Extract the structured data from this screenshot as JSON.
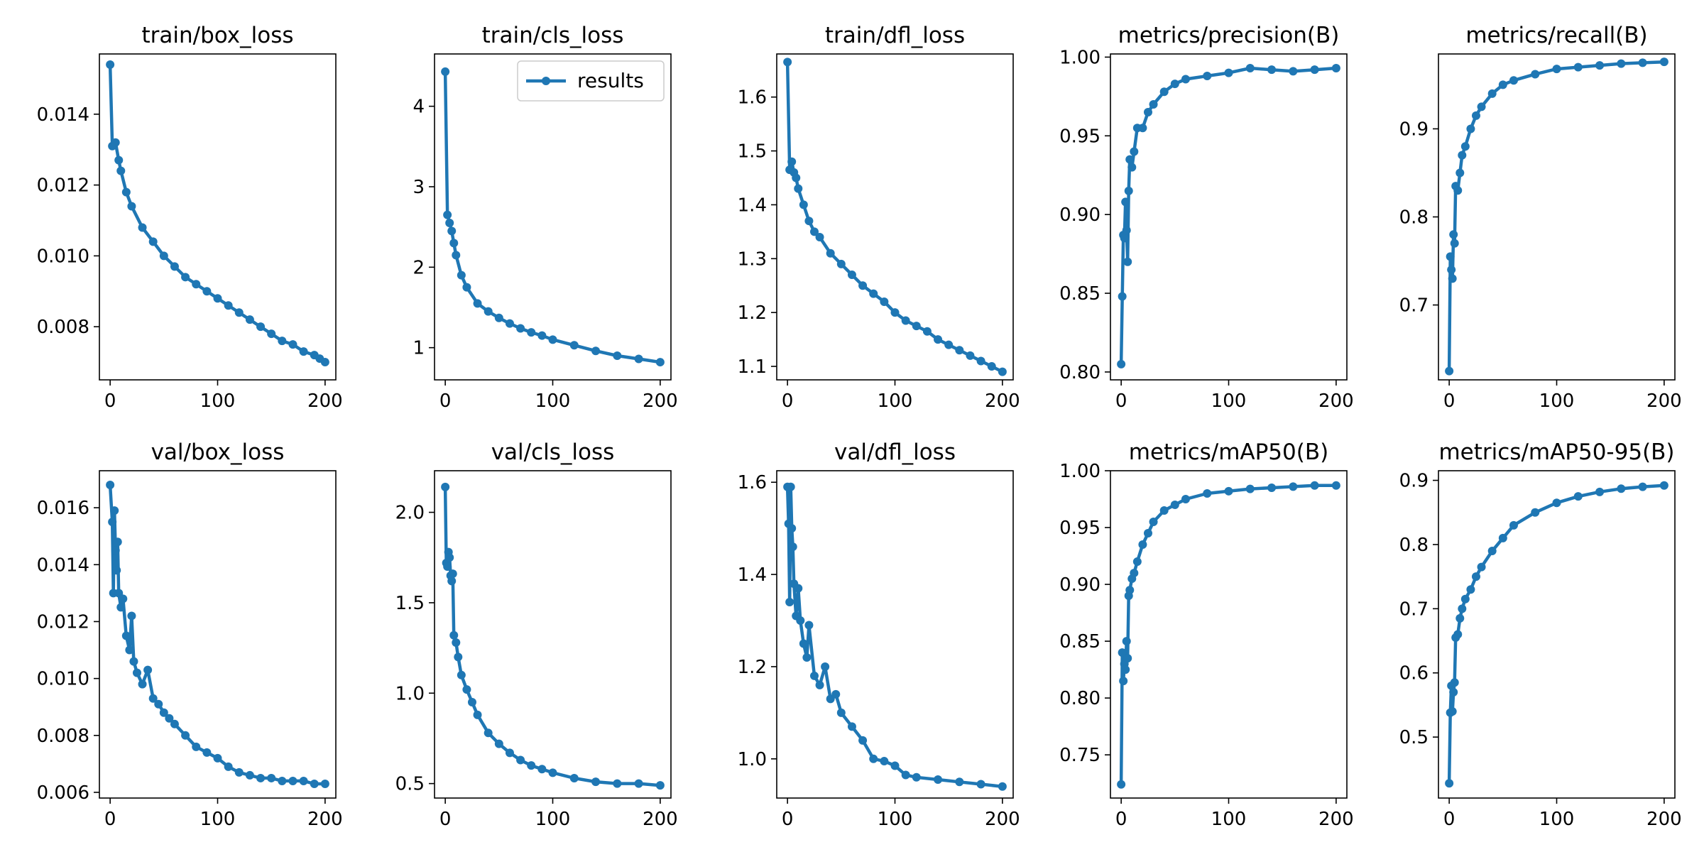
{
  "figure": {
    "legend_label": "results",
    "series_color": "#1f77b4"
  },
  "chart_data": [
    {
      "type": "line",
      "title": "train/box_loss",
      "legend": "",
      "ylim": [
        0.0065,
        0.0157
      ],
      "xlim": [
        -10,
        210
      ],
      "xticks": [
        0,
        100,
        200
      ],
      "yticks": [
        0.008,
        0.01,
        0.012,
        0.014
      ],
      "ytick_labels": [
        "0.008",
        "0.010",
        "0.012",
        "0.014"
      ],
      "x": [
        0,
        2,
        5,
        8,
        10,
        15,
        20,
        30,
        40,
        50,
        60,
        70,
        80,
        90,
        100,
        110,
        120,
        130,
        140,
        150,
        160,
        170,
        180,
        190,
        195,
        200
      ],
      "y": [
        0.0154,
        0.0131,
        0.0132,
        0.0127,
        0.0124,
        0.0118,
        0.0114,
        0.0108,
        0.0104,
        0.01,
        0.0097,
        0.0094,
        0.0092,
        0.009,
        0.0088,
        0.0086,
        0.0084,
        0.0082,
        0.008,
        0.0078,
        0.0076,
        0.0075,
        0.0073,
        0.0072,
        0.0071,
        0.007
      ]
    },
    {
      "type": "line",
      "title": "train/cls_loss",
      "legend": "results",
      "ylim": [
        0.6,
        4.65
      ],
      "xlim": [
        -10,
        210
      ],
      "xticks": [
        0,
        100,
        200
      ],
      "yticks": [
        1,
        2,
        3,
        4
      ],
      "ytick_labels": [
        "1",
        "2",
        "3",
        "4"
      ],
      "x": [
        0,
        2,
        4,
        6,
        8,
        10,
        15,
        20,
        30,
        40,
        50,
        60,
        70,
        80,
        90,
        100,
        120,
        140,
        160,
        180,
        200
      ],
      "y": [
        4.43,
        2.65,
        2.55,
        2.45,
        2.3,
        2.15,
        1.9,
        1.75,
        1.55,
        1.45,
        1.37,
        1.3,
        1.24,
        1.19,
        1.15,
        1.1,
        1.03,
        0.96,
        0.9,
        0.86,
        0.82
      ]
    },
    {
      "type": "line",
      "title": "train/dfl_loss",
      "legend": "",
      "ylim": [
        1.075,
        1.68
      ],
      "xlim": [
        -10,
        210
      ],
      "xticks": [
        0,
        100,
        200
      ],
      "yticks": [
        1.1,
        1.2,
        1.3,
        1.4,
        1.5,
        1.6
      ],
      "ytick_labels": [
        "1.1",
        "1.2",
        "1.3",
        "1.4",
        "1.5",
        "1.6"
      ],
      "x": [
        0,
        2,
        4,
        6,
        8,
        10,
        15,
        20,
        25,
        30,
        40,
        50,
        60,
        70,
        80,
        90,
        100,
        110,
        120,
        130,
        140,
        150,
        160,
        170,
        180,
        190,
        200
      ],
      "y": [
        1.665,
        1.465,
        1.48,
        1.46,
        1.45,
        1.43,
        1.4,
        1.37,
        1.35,
        1.34,
        1.31,
        1.29,
        1.27,
        1.25,
        1.235,
        1.22,
        1.2,
        1.185,
        1.175,
        1.165,
        1.15,
        1.14,
        1.13,
        1.12,
        1.11,
        1.1,
        1.09
      ]
    },
    {
      "type": "line",
      "title": "metrics/precision(B)",
      "legend": "",
      "ylim": [
        0.795,
        1.002
      ],
      "xlim": [
        -10,
        210
      ],
      "xticks": [
        0,
        100,
        200
      ],
      "yticks": [
        0.8,
        0.85,
        0.9,
        0.95,
        1.0
      ],
      "ytick_labels": [
        "0.80",
        "0.85",
        "0.90",
        "0.95",
        "1.00"
      ],
      "x": [
        0,
        1,
        2,
        3,
        4,
        5,
        6,
        7,
        8,
        10,
        12,
        15,
        20,
        25,
        30,
        40,
        50,
        60,
        80,
        100,
        120,
        140,
        160,
        180,
        200
      ],
      "y": [
        0.805,
        0.848,
        0.887,
        0.885,
        0.908,
        0.89,
        0.87,
        0.915,
        0.935,
        0.93,
        0.94,
        0.955,
        0.955,
        0.965,
        0.97,
        0.978,
        0.983,
        0.986,
        0.988,
        0.99,
        0.993,
        0.992,
        0.991,
        0.992,
        0.993
      ]
    },
    {
      "type": "line",
      "title": "metrics/recall(B)",
      "legend": "",
      "ylim": [
        0.615,
        0.985
      ],
      "xlim": [
        -10,
        210
      ],
      "xticks": [
        0,
        100,
        200
      ],
      "yticks": [
        0.7,
        0.8,
        0.9
      ],
      "ytick_labels": [
        "0.7",
        "0.8",
        "0.9"
      ],
      "x": [
        0,
        1,
        2,
        3,
        4,
        5,
        6,
        8,
        10,
        12,
        15,
        20,
        25,
        30,
        40,
        50,
        60,
        80,
        100,
        120,
        140,
        160,
        180,
        200
      ],
      "y": [
        0.625,
        0.755,
        0.74,
        0.73,
        0.78,
        0.77,
        0.835,
        0.83,
        0.85,
        0.87,
        0.88,
        0.9,
        0.915,
        0.925,
        0.94,
        0.95,
        0.955,
        0.962,
        0.968,
        0.97,
        0.972,
        0.974,
        0.975,
        0.976
      ]
    },
    {
      "type": "line",
      "title": "val/box_loss",
      "legend": "",
      "ylim": [
        0.0058,
        0.0173
      ],
      "xlim": [
        -10,
        210
      ],
      "xticks": [
        0,
        100,
        200
      ],
      "yticks": [
        0.006,
        0.008,
        0.01,
        0.012,
        0.014,
        0.016
      ],
      "ytick_labels": [
        "0.006",
        "0.008",
        "0.010",
        "0.012",
        "0.014",
        "0.016"
      ],
      "x": [
        0,
        2,
        3,
        4,
        5,
        6,
        7,
        8,
        10,
        12,
        15,
        18,
        20,
        22,
        25,
        30,
        35,
        40,
        45,
        50,
        55,
        60,
        70,
        80,
        90,
        100,
        110,
        120,
        130,
        140,
        150,
        160,
        170,
        180,
        190,
        200
      ],
      "y": [
        0.0168,
        0.0155,
        0.013,
        0.0159,
        0.0145,
        0.0138,
        0.0148,
        0.013,
        0.0125,
        0.0128,
        0.0115,
        0.011,
        0.0122,
        0.0106,
        0.0102,
        0.0098,
        0.0103,
        0.0093,
        0.0091,
        0.0088,
        0.0086,
        0.0084,
        0.008,
        0.0076,
        0.0074,
        0.0072,
        0.0069,
        0.0067,
        0.0066,
        0.0065,
        0.0065,
        0.0064,
        0.0064,
        0.0064,
        0.0063,
        0.0063
      ]
    },
    {
      "type": "line",
      "title": "val/cls_loss",
      "legend": "",
      "ylim": [
        0.42,
        2.23
      ],
      "xlim": [
        -10,
        210
      ],
      "xticks": [
        0,
        100,
        200
      ],
      "yticks": [
        0.5,
        1.0,
        1.5,
        2.0
      ],
      "ytick_labels": [
        "0.5",
        "1.0",
        "1.5",
        "2.0"
      ],
      "x": [
        0,
        1,
        2,
        3,
        4,
        5,
        6,
        7,
        8,
        10,
        12,
        15,
        20,
        25,
        30,
        40,
        50,
        60,
        70,
        80,
        90,
        100,
        120,
        140,
        160,
        180,
        200
      ],
      "y": [
        2.14,
        1.72,
        1.7,
        1.78,
        1.75,
        1.65,
        1.62,
        1.66,
        1.32,
        1.28,
        1.2,
        1.1,
        1.02,
        0.95,
        0.88,
        0.78,
        0.72,
        0.67,
        0.63,
        0.6,
        0.58,
        0.56,
        0.53,
        0.51,
        0.5,
        0.5,
        0.49
      ]
    },
    {
      "type": "line",
      "title": "val/dfl_loss",
      "legend": "",
      "ylim": [
        0.915,
        1.625
      ],
      "xlim": [
        -10,
        210
      ],
      "xticks": [
        0,
        100,
        200
      ],
      "yticks": [
        1.0,
        1.2,
        1.4,
        1.6
      ],
      "ytick_labels": [
        "1.0",
        "1.2",
        "1.4",
        "1.6"
      ],
      "x": [
        0,
        1,
        2,
        3,
        4,
        5,
        6,
        8,
        10,
        12,
        15,
        18,
        20,
        25,
        30,
        35,
        40,
        45,
        50,
        60,
        70,
        80,
        90,
        100,
        110,
        120,
        140,
        160,
        180,
        200
      ],
      "y": [
        1.59,
        1.51,
        1.34,
        1.59,
        1.5,
        1.46,
        1.38,
        1.31,
        1.37,
        1.3,
        1.25,
        1.22,
        1.29,
        1.18,
        1.16,
        1.2,
        1.13,
        1.14,
        1.1,
        1.07,
        1.04,
        1.0,
        0.995,
        0.985,
        0.965,
        0.96,
        0.955,
        0.95,
        0.945,
        0.94
      ]
    },
    {
      "type": "line",
      "title": "metrics/mAP50(B)",
      "legend": "",
      "ylim": [
        0.712,
        1.0
      ],
      "xlim": [
        -10,
        210
      ],
      "xticks": [
        0,
        100,
        200
      ],
      "yticks": [
        0.75,
        0.8,
        0.85,
        0.9,
        0.95,
        1.0
      ],
      "ytick_labels": [
        "0.75",
        "0.80",
        "0.85",
        "0.90",
        "0.95",
        "1.00"
      ],
      "x": [
        0,
        1,
        2,
        3,
        4,
        5,
        6,
        7,
        8,
        10,
        12,
        15,
        20,
        25,
        30,
        40,
        50,
        60,
        80,
        100,
        120,
        140,
        160,
        180,
        200
      ],
      "y": [
        0.724,
        0.84,
        0.815,
        0.83,
        0.825,
        0.85,
        0.835,
        0.89,
        0.895,
        0.905,
        0.91,
        0.92,
        0.935,
        0.945,
        0.955,
        0.965,
        0.97,
        0.975,
        0.98,
        0.982,
        0.984,
        0.985,
        0.986,
        0.987,
        0.987
      ]
    },
    {
      "type": "line",
      "title": "metrics/mAP50-95(B)",
      "legend": "",
      "ylim": [
        0.405,
        0.915
      ],
      "xlim": [
        -10,
        210
      ],
      "xticks": [
        0,
        100,
        200
      ],
      "yticks": [
        0.5,
        0.6,
        0.7,
        0.8,
        0.9
      ],
      "ytick_labels": [
        "0.5",
        "0.6",
        "0.7",
        "0.8",
        "0.9"
      ],
      "x": [
        0,
        1,
        2,
        3,
        4,
        5,
        6,
        8,
        10,
        12,
        15,
        20,
        25,
        30,
        40,
        50,
        60,
        80,
        100,
        120,
        140,
        160,
        180,
        200
      ],
      "y": [
        0.428,
        0.538,
        0.58,
        0.54,
        0.57,
        0.585,
        0.655,
        0.66,
        0.685,
        0.7,
        0.715,
        0.73,
        0.75,
        0.765,
        0.79,
        0.81,
        0.83,
        0.85,
        0.865,
        0.875,
        0.882,
        0.887,
        0.89,
        0.892
      ]
    }
  ]
}
